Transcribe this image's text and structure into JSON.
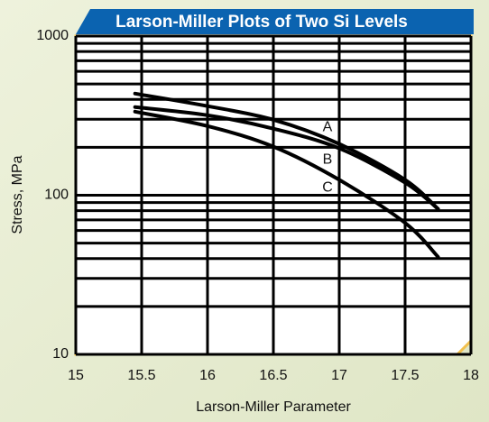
{
  "chart_data": {
    "type": "line",
    "title": "Larson-Miller Plots of Two Si Levels",
    "x_label": "Larson-Miller Parameter",
    "y_label": "Stress, MPa",
    "xlim": [
      15,
      18
    ],
    "xticks": [
      15,
      15.5,
      16,
      16.5,
      17,
      17.5,
      18
    ],
    "ylim": [
      10,
      1000
    ],
    "yticks": [
      10,
      100,
      1000
    ],
    "log_y": true,
    "grid": true,
    "minor_yticks": [
      20,
      30,
      40,
      50,
      60,
      70,
      80,
      90,
      200,
      300,
      400,
      500,
      600,
      700,
      800,
      900
    ],
    "x": [
      15.45,
      16,
      16.5,
      17,
      17.5,
      17.75
    ],
    "series": [
      {
        "name": "A",
        "color": "#000000",
        "values": [
          435,
          363,
          298,
          210,
          125,
          82
        ]
      },
      {
        "name": "B",
        "color": "#000000",
        "values": [
          358,
          318,
          262,
          197,
          120,
          82
        ]
      },
      {
        "name": "C",
        "color": "#000000",
        "values": [
          335,
          272,
          202,
          125,
          67,
          41
        ]
      }
    ]
  }
}
